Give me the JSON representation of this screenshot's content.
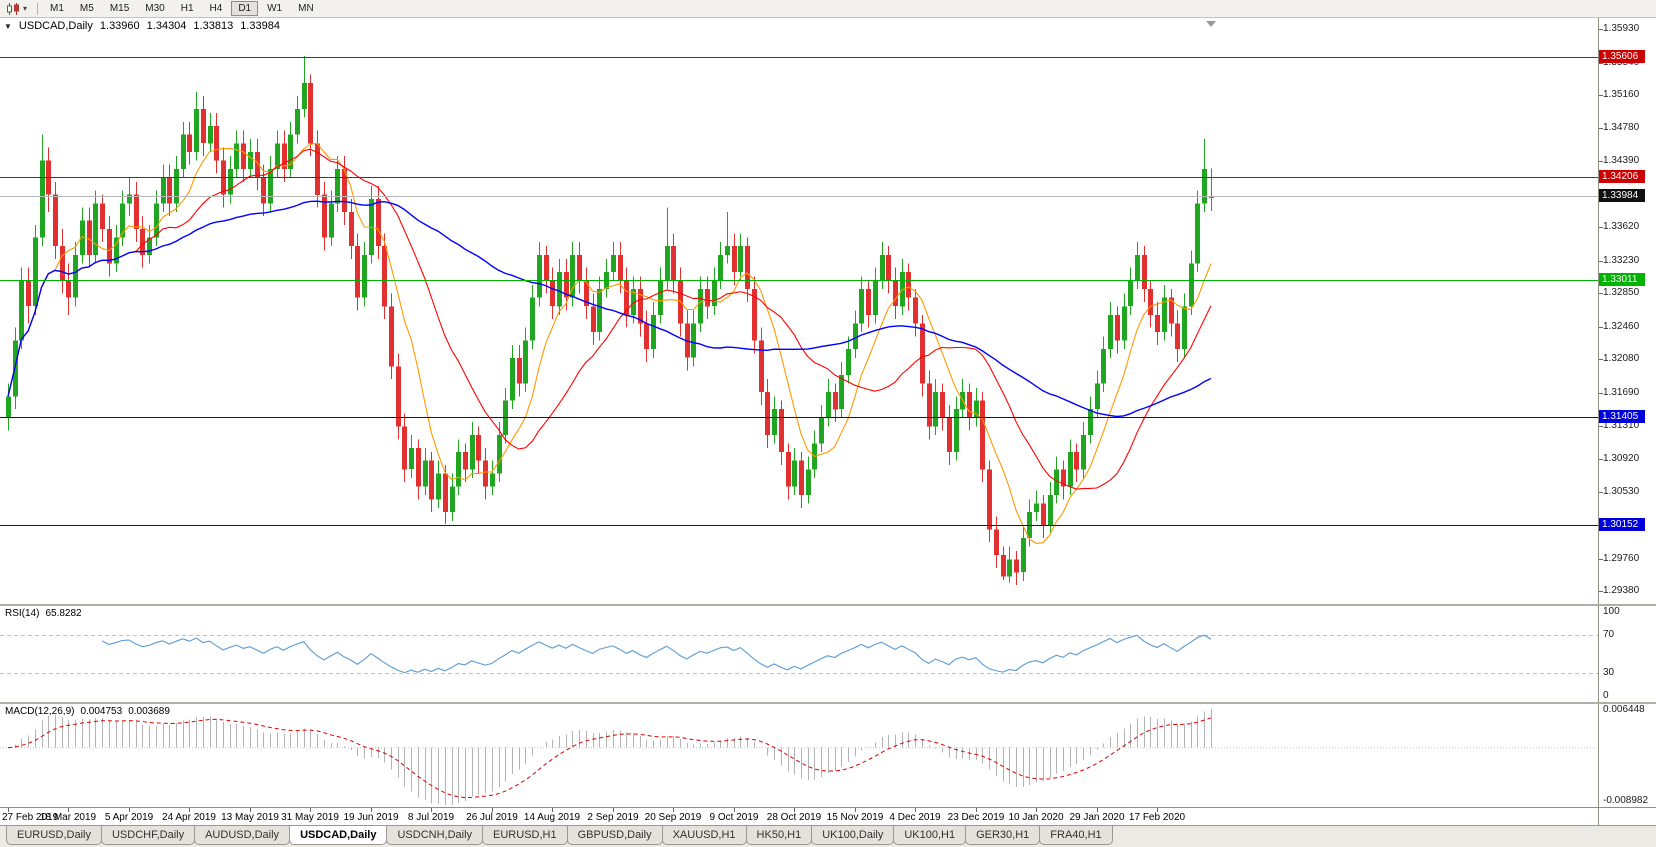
{
  "icons": {
    "chart_menu": "▼",
    "dropdown_caret": "▾"
  },
  "toolbar": {
    "timeframes": [
      "M1",
      "M5",
      "M15",
      "M30",
      "H1",
      "H4",
      "D1",
      "W1",
      "MN"
    ],
    "active_timeframe": "D1"
  },
  "chart_header": {
    "symbol_period": "USDCAD,Daily",
    "open": "1.33960",
    "high": "1.34304",
    "low": "1.33813",
    "close": "1.33984"
  },
  "indicators": {
    "rsi": {
      "name": "RSI(14)",
      "value": "65.8282",
      "period": 14,
      "color": "#5a9bd4",
      "levels": [
        30,
        70
      ],
      "axis_labels": [
        "100",
        "70",
        "30",
        "0"
      ]
    },
    "macd": {
      "name": "MACD(12,26,9)",
      "value_main": "0.004753",
      "value_signal": "0.003689",
      "fast": 12,
      "slow": 26,
      "signal": 9,
      "hist_color": "#b3b3b3",
      "signal_color": "#dd0000",
      "axis_max": "0.006448",
      "axis_min": "-0.008982"
    }
  },
  "chart_data": {
    "type": "candlestick",
    "symbol": "USDCAD",
    "timeframe": "Daily",
    "ylim": [
      1.2923,
      1.3606
    ],
    "y_ticks": [
      "1.35930",
      "1.35540",
      "1.35160",
      "1.34780",
      "1.34390",
      "1.33620",
      "1.33230",
      "1.32850",
      "1.32460",
      "1.32080",
      "1.31690",
      "1.31310",
      "1.30920",
      "1.30530",
      "1.29760",
      "1.29380"
    ],
    "x_labels": [
      "27 Feb 2019",
      "18 Mar 2019",
      "5 Apr 2019",
      "24 Apr 2019",
      "13 May 2019",
      "31 May 2019",
      "19 Jun 2019",
      "8 Jul 2019",
      "26 Jul 2019",
      "14 Aug 2019",
      "2 Sep 2019",
      "20 Sep 2019",
      "9 Oct 2019",
      "28 Oct 2019",
      "15 Nov 2019",
      "4 Dec 2019",
      "23 Dec 2019",
      "10 Jan 2020",
      "29 Jan 2020",
      "17 Feb 2020"
    ],
    "x_label_step": 9,
    "up_color": "#21a621",
    "down_color": "#e23030",
    "moving_averages": [
      {
        "period": 8,
        "color": "#ff9900"
      },
      {
        "period": 20,
        "color": "#ff0000"
      },
      {
        "period": 55,
        "color": "#0000ff"
      }
    ],
    "levels": [
      {
        "value": "1.35606",
        "price": 1.35606,
        "line_color": "#cc0000",
        "badge_bg": "#cc0000"
      },
      {
        "value": "1.34206",
        "price": 1.34206,
        "line_color": "#cc0000",
        "badge_bg": "#cc0000"
      },
      {
        "value": "1.33984",
        "price": 1.33984,
        "line_color": "#b8b8b8",
        "badge_bg": "#111111",
        "current_price": true
      },
      {
        "value": "1.33011",
        "price": 1.33011,
        "line_color": "#00b300",
        "badge_bg": "#00b300"
      },
      {
        "value": "1.31405",
        "price": 1.31405,
        "line_color": "#0000dd",
        "badge_bg": "#0000dd"
      },
      {
        "value": "1.30152",
        "price": 1.30152,
        "line_color": "#0000dd",
        "badge_bg": "#0000dd"
      }
    ],
    "candles": [
      [
        1.314,
        1.318,
        1.3125,
        1.3165
      ],
      [
        1.3165,
        1.3245,
        1.315,
        1.323
      ],
      [
        1.323,
        1.3315,
        1.322,
        1.33
      ],
      [
        1.33,
        1.3315,
        1.325,
        1.327
      ],
      [
        1.327,
        1.3365,
        1.326,
        1.335
      ],
      [
        1.335,
        1.347,
        1.334,
        1.344
      ],
      [
        1.344,
        1.3455,
        1.338,
        1.34
      ],
      [
        1.34,
        1.3415,
        1.3325,
        1.334
      ],
      [
        1.334,
        1.336,
        1.3285,
        1.33
      ],
      [
        1.33,
        1.332,
        1.326,
        1.328
      ],
      [
        1.328,
        1.3345,
        1.327,
        1.333
      ],
      [
        1.333,
        1.3385,
        1.332,
        1.337
      ],
      [
        1.337,
        1.3385,
        1.3315,
        1.333
      ],
      [
        1.333,
        1.3405,
        1.332,
        1.339
      ],
      [
        1.339,
        1.34,
        1.3345,
        1.336
      ],
      [
        1.336,
        1.3375,
        1.3305,
        1.332
      ],
      [
        1.332,
        1.3365,
        1.331,
        1.335
      ],
      [
        1.335,
        1.3405,
        1.334,
        1.339
      ],
      [
        1.339,
        1.342,
        1.3375,
        1.34
      ],
      [
        1.34,
        1.3415,
        1.3345,
        1.336
      ],
      [
        1.336,
        1.3375,
        1.3315,
        1.333
      ],
      [
        1.333,
        1.3365,
        1.332,
        1.335
      ],
      [
        1.335,
        1.3405,
        1.334,
        1.339
      ],
      [
        1.339,
        1.3435,
        1.338,
        1.342
      ],
      [
        1.342,
        1.3435,
        1.3375,
        1.339
      ],
      [
        1.339,
        1.3445,
        1.338,
        1.343
      ],
      [
        1.343,
        1.3485,
        1.342,
        1.347
      ],
      [
        1.347,
        1.3485,
        1.3435,
        1.345
      ],
      [
        1.345,
        1.352,
        1.344,
        1.35
      ],
      [
        1.35,
        1.3515,
        1.3445,
        1.346
      ],
      [
        1.346,
        1.3495,
        1.345,
        1.348
      ],
      [
        1.348,
        1.3495,
        1.3425,
        1.344
      ],
      [
        1.344,
        1.3455,
        1.3385,
        1.34
      ],
      [
        1.34,
        1.3445,
        1.339,
        1.343
      ],
      [
        1.343,
        1.3475,
        1.342,
        1.346
      ],
      [
        1.346,
        1.3475,
        1.3415,
        1.343
      ],
      [
        1.343,
        1.3465,
        1.342,
        1.345
      ],
      [
        1.345,
        1.3465,
        1.3405,
        1.342
      ],
      [
        1.342,
        1.3435,
        1.3375,
        1.339
      ],
      [
        1.339,
        1.3445,
        1.338,
        1.343
      ],
      [
        1.343,
        1.3475,
        1.342,
        1.346
      ],
      [
        1.346,
        1.3475,
        1.3415,
        1.343
      ],
      [
        1.343,
        1.3485,
        1.342,
        1.347
      ],
      [
        1.347,
        1.3515,
        1.346,
        1.35
      ],
      [
        1.35,
        1.3562,
        1.349,
        1.353
      ],
      [
        1.353,
        1.354,
        1.3445,
        1.346
      ],
      [
        1.346,
        1.3475,
        1.3385,
        1.34
      ],
      [
        1.34,
        1.3415,
        1.3335,
        1.335
      ],
      [
        1.335,
        1.3405,
        1.334,
        1.339
      ],
      [
        1.339,
        1.3445,
        1.338,
        1.343
      ],
      [
        1.343,
        1.3445,
        1.3365,
        1.338
      ],
      [
        1.338,
        1.3395,
        1.3325,
        1.334
      ],
      [
        1.334,
        1.3355,
        1.3265,
        1.328
      ],
      [
        1.328,
        1.3345,
        1.327,
        1.333
      ],
      [
        1.333,
        1.341,
        1.332,
        1.3395
      ],
      [
        1.3395,
        1.341,
        1.3325,
        1.334
      ],
      [
        1.334,
        1.3355,
        1.3255,
        1.327
      ],
      [
        1.327,
        1.3285,
        1.3185,
        1.32
      ],
      [
        1.32,
        1.3215,
        1.3115,
        1.313
      ],
      [
        1.313,
        1.3145,
        1.3065,
        1.308
      ],
      [
        1.308,
        1.312,
        1.307,
        1.3105
      ],
      [
        1.3105,
        1.3115,
        1.3045,
        1.306
      ],
      [
        1.306,
        1.3105,
        1.305,
        1.309
      ],
      [
        1.309,
        1.31,
        1.303,
        1.3045
      ],
      [
        1.3045,
        1.309,
        1.3035,
        1.3075
      ],
      [
        1.3075,
        1.3085,
        1.3016,
        1.303
      ],
      [
        1.303,
        1.3075,
        1.302,
        1.306
      ],
      [
        1.306,
        1.3115,
        1.305,
        1.31
      ],
      [
        1.31,
        1.311,
        1.3065,
        1.308
      ],
      [
        1.308,
        1.3135,
        1.307,
        1.312
      ],
      [
        1.312,
        1.313,
        1.3075,
        1.309
      ],
      [
        1.309,
        1.3105,
        1.3045,
        1.306
      ],
      [
        1.306,
        1.309,
        1.305,
        1.3075
      ],
      [
        1.3075,
        1.3135,
        1.3065,
        1.312
      ],
      [
        1.312,
        1.3175,
        1.311,
        1.316
      ],
      [
        1.316,
        1.3225,
        1.315,
        1.321
      ],
      [
        1.321,
        1.3225,
        1.3165,
        1.318
      ],
      [
        1.318,
        1.3245,
        1.317,
        1.323
      ],
      [
        1.323,
        1.3295,
        1.322,
        1.328
      ],
      [
        1.328,
        1.3345,
        1.327,
        1.333
      ],
      [
        1.333,
        1.334,
        1.3285,
        1.33
      ],
      [
        1.33,
        1.3315,
        1.3255,
        1.327
      ],
      [
        1.327,
        1.3325,
        1.326,
        1.331
      ],
      [
        1.331,
        1.3325,
        1.3265,
        1.328
      ],
      [
        1.328,
        1.3345,
        1.327,
        1.333
      ],
      [
        1.333,
        1.3345,
        1.3285,
        1.33
      ],
      [
        1.33,
        1.3315,
        1.3255,
        1.327
      ],
      [
        1.327,
        1.3285,
        1.3225,
        1.324
      ],
      [
        1.324,
        1.3305,
        1.323,
        1.329
      ],
      [
        1.329,
        1.3325,
        1.328,
        1.331
      ],
      [
        1.331,
        1.3345,
        1.33,
        1.333
      ],
      [
        1.333,
        1.3345,
        1.3285,
        1.33
      ],
      [
        1.33,
        1.3315,
        1.3245,
        1.326
      ],
      [
        1.326,
        1.3305,
        1.325,
        1.329
      ],
      [
        1.329,
        1.3305,
        1.3235,
        1.325
      ],
      [
        1.325,
        1.3265,
        1.3205,
        1.322
      ],
      [
        1.322,
        1.3275,
        1.321,
        1.326
      ],
      [
        1.326,
        1.3315,
        1.325,
        1.33
      ],
      [
        1.33,
        1.3385,
        1.329,
        1.334
      ],
      [
        1.334,
        1.3355,
        1.3285,
        1.33
      ],
      [
        1.33,
        1.3315,
        1.3235,
        1.325
      ],
      [
        1.325,
        1.3265,
        1.3195,
        1.321
      ],
      [
        1.321,
        1.3265,
        1.32,
        1.325
      ],
      [
        1.325,
        1.3305,
        1.324,
        1.329
      ],
      [
        1.329,
        1.3305,
        1.3255,
        1.327
      ],
      [
        1.327,
        1.3315,
        1.326,
        1.33
      ],
      [
        1.33,
        1.3345,
        1.329,
        1.333
      ],
      [
        1.333,
        1.338,
        1.332,
        1.334
      ],
      [
        1.334,
        1.3355,
        1.3295,
        1.331
      ],
      [
        1.331,
        1.3355,
        1.33,
        1.334
      ],
      [
        1.334,
        1.335,
        1.3275,
        1.329
      ],
      [
        1.329,
        1.3305,
        1.3215,
        1.323
      ],
      [
        1.323,
        1.3245,
        1.3155,
        1.317
      ],
      [
        1.317,
        1.3185,
        1.3105,
        1.312
      ],
      [
        1.312,
        1.3165,
        1.311,
        1.315
      ],
      [
        1.315,
        1.316,
        1.3085,
        1.31
      ],
      [
        1.31,
        1.311,
        1.3045,
        1.306
      ],
      [
        1.306,
        1.3105,
        1.305,
        1.309
      ],
      [
        1.309,
        1.31,
        1.3035,
        1.305
      ],
      [
        1.305,
        1.3095,
        1.304,
        1.308
      ],
      [
        1.308,
        1.3125,
        1.307,
        1.311
      ],
      [
        1.311,
        1.3155,
        1.31,
        1.314
      ],
      [
        1.314,
        1.3185,
        1.313,
        1.317
      ],
      [
        1.317,
        1.318,
        1.3135,
        1.315
      ],
      [
        1.315,
        1.3205,
        1.314,
        1.319
      ],
      [
        1.319,
        1.3235,
        1.318,
        1.322
      ],
      [
        1.322,
        1.3265,
        1.321,
        1.325
      ],
      [
        1.325,
        1.3305,
        1.324,
        1.329
      ],
      [
        1.329,
        1.33,
        1.3245,
        1.326
      ],
      [
        1.326,
        1.3315,
        1.325,
        1.33
      ],
      [
        1.33,
        1.3345,
        1.329,
        1.333
      ],
      [
        1.333,
        1.334,
        1.3285,
        1.33
      ],
      [
        1.33,
        1.3315,
        1.3255,
        1.327
      ],
      [
        1.327,
        1.3325,
        1.326,
        1.331
      ],
      [
        1.331,
        1.332,
        1.3265,
        1.328
      ],
      [
        1.328,
        1.329,
        1.3235,
        1.325
      ],
      [
        1.325,
        1.326,
        1.3165,
        1.318
      ],
      [
        1.318,
        1.3195,
        1.3115,
        1.313
      ],
      [
        1.313,
        1.3185,
        1.312,
        1.317
      ],
      [
        1.317,
        1.318,
        1.3125,
        1.314
      ],
      [
        1.314,
        1.3155,
        1.3085,
        1.31
      ],
      [
        1.31,
        1.3165,
        1.309,
        1.315
      ],
      [
        1.315,
        1.3185,
        1.314,
        1.317
      ],
      [
        1.317,
        1.318,
        1.3125,
        1.314
      ],
      [
        1.314,
        1.3175,
        1.313,
        1.316
      ],
      [
        1.316,
        1.317,
        1.3065,
        1.308
      ],
      [
        1.308,
        1.309,
        1.2995,
        1.301
      ],
      [
        1.301,
        1.3025,
        1.2965,
        1.298
      ],
      [
        1.298,
        1.299,
        1.2951,
        1.2955
      ],
      [
        1.2955,
        1.299,
        1.2948,
        1.2975
      ],
      [
        1.2975,
        1.2985,
        1.2945,
        1.296
      ],
      [
        1.296,
        1.3015,
        1.295,
        1.3
      ],
      [
        1.3,
        1.3045,
        1.299,
        1.303
      ],
      [
        1.303,
        1.3055,
        1.302,
        1.304
      ],
      [
        1.304,
        1.305,
        1.3,
        1.3015
      ],
      [
        1.3015,
        1.3065,
        1.3005,
        1.305
      ],
      [
        1.305,
        1.3095,
        1.304,
        1.308
      ],
      [
        1.308,
        1.309,
        1.3045,
        1.306
      ],
      [
        1.306,
        1.3115,
        1.305,
        1.31
      ],
      [
        1.31,
        1.311,
        1.3065,
        1.308
      ],
      [
        1.308,
        1.3135,
        1.307,
        1.312
      ],
      [
        1.312,
        1.3165,
        1.311,
        1.315
      ],
      [
        1.315,
        1.3195,
        1.314,
        1.318
      ],
      [
        1.318,
        1.3235,
        1.317,
        1.322
      ],
      [
        1.322,
        1.3275,
        1.321,
        1.326
      ],
      [
        1.326,
        1.327,
        1.3215,
        1.323
      ],
      [
        1.323,
        1.3285,
        1.322,
        1.327
      ],
      [
        1.327,
        1.3315,
        1.326,
        1.33
      ],
      [
        1.33,
        1.3345,
        1.329,
        1.333
      ],
      [
        1.333,
        1.334,
        1.3275,
        1.329
      ],
      [
        1.329,
        1.33,
        1.3245,
        1.326
      ],
      [
        1.326,
        1.3275,
        1.3225,
        1.324
      ],
      [
        1.324,
        1.3295,
        1.323,
        1.328
      ],
      [
        1.328,
        1.329,
        1.3235,
        1.325
      ],
      [
        1.325,
        1.3265,
        1.3205,
        1.322
      ],
      [
        1.322,
        1.3285,
        1.321,
        1.327
      ],
      [
        1.327,
        1.3335,
        1.326,
        1.332
      ],
      [
        1.332,
        1.3405,
        1.331,
        1.339
      ],
      [
        1.339,
        1.3465,
        1.338,
        1.343
      ],
      [
        1.3396,
        1.34304,
        1.33813,
        1.33984
      ]
    ]
  },
  "tabs": [
    {
      "label": "EURUSD,Daily"
    },
    {
      "label": "USDCHF,Daily"
    },
    {
      "label": "AUDUSD,Daily"
    },
    {
      "label": "USDCAD,Daily",
      "active": true
    },
    {
      "label": "USDCNH,Daily"
    },
    {
      "label": "EURUSD,H1"
    },
    {
      "label": "GBPUSD,Daily"
    },
    {
      "label": "XAUUSD,H1"
    },
    {
      "label": "HK50,H1"
    },
    {
      "label": "UK100,Daily"
    },
    {
      "label": "UK100,H1"
    },
    {
      "label": "GER30,H1"
    },
    {
      "label": "FRA40,H1"
    }
  ]
}
